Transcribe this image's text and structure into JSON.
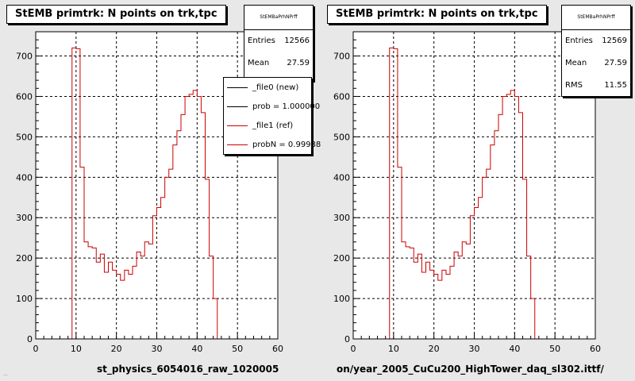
{
  "left_pad": {
    "title": "StEMB primtrk: N points on trk,tpc",
    "stats": {
      "name": "StEMBaPrhNPrff",
      "rows": [
        {
          "label": "Entries",
          "value": "12566"
        },
        {
          "label": "Mean",
          "value": "27.59"
        }
      ]
    },
    "legend": [
      {
        "label": "_file0 (new)",
        "color": "#000000"
      },
      {
        "label": "prob = 1.000000",
        "color": "#000000"
      },
      {
        "label": "_file1 (ref)",
        "color": "#cc0000"
      },
      {
        "label": "probN = 0.99988",
        "color": "#cc0000"
      }
    ],
    "file_label": "st_physics_6054016_raw_1020005"
  },
  "right_pad": {
    "title": "StEMB primtrk: N points on trk,tpc",
    "stats": {
      "name": "StEMBaPrhNPrff",
      "rows": [
        {
          "label": "Entries",
          "value": "12569"
        },
        {
          "label": "Mean",
          "value": "27.59"
        },
        {
          "label": "RMS",
          "value": "11.55"
        }
      ]
    },
    "file_label": "on/year_2005_CuCu200_HighTower_daq_sl302.ittf/"
  },
  "footer_text": "...",
  "colors": {
    "hist": "#cc0000",
    "grid": "#000000",
    "frame_bg": "#ffffff",
    "canvas_bg": "#e8e8e8"
  },
  "chart_data": [
    {
      "type": "bar",
      "title": "StEMB primtrk: N points on trk,tpc",
      "xlim": [
        0,
        60
      ],
      "ylim": [
        0,
        760
      ],
      "xticks": [
        0,
        10,
        20,
        30,
        40,
        50,
        60
      ],
      "yticks": [
        0,
        100,
        200,
        300,
        400,
        500,
        600,
        700
      ],
      "grid": true,
      "bin_edges": [
        0,
        1,
        2,
        3,
        4,
        5,
        6,
        7,
        8,
        9,
        10,
        11,
        12,
        13,
        14,
        15,
        16,
        17,
        18,
        19,
        20,
        21,
        22,
        23,
        24,
        25,
        26,
        27,
        28,
        29,
        30,
        31,
        32,
        33,
        34,
        35,
        36,
        37,
        38,
        39,
        40,
        41,
        42,
        43,
        44,
        45,
        46,
        47,
        48,
        49,
        50,
        51,
        52,
        53,
        54,
        55,
        56,
        57,
        58,
        59,
        60
      ],
      "series": [
        {
          "name": "_file1 (ref)",
          "values": [
            0,
            0,
            0,
            0,
            0,
            0,
            0,
            0,
            0,
            720,
            718,
            425,
            240,
            228,
            225,
            190,
            210,
            165,
            190,
            170,
            160,
            145,
            170,
            160,
            180,
            215,
            205,
            240,
            235,
            305,
            325,
            350,
            400,
            420,
            480,
            515,
            555,
            600,
            605,
            615,
            600,
            560,
            395,
            205,
            100,
            0,
            0,
            0,
            0,
            0,
            0,
            0,
            0,
            0,
            0,
            0,
            0,
            0,
            0,
            0
          ]
        }
      ]
    },
    {
      "type": "bar",
      "title": "StEMB primtrk: N points on trk,tpc",
      "xlim": [
        0,
        60
      ],
      "ylim": [
        0,
        760
      ],
      "xticks": [
        0,
        10,
        20,
        30,
        40,
        50,
        60
      ],
      "yticks": [
        0,
        100,
        200,
        300,
        400,
        500,
        600,
        700
      ],
      "grid": true,
      "bin_edges": [
        0,
        1,
        2,
        3,
        4,
        5,
        6,
        7,
        8,
        9,
        10,
        11,
        12,
        13,
        14,
        15,
        16,
        17,
        18,
        19,
        20,
        21,
        22,
        23,
        24,
        25,
        26,
        27,
        28,
        29,
        30,
        31,
        32,
        33,
        34,
        35,
        36,
        37,
        38,
        39,
        40,
        41,
        42,
        43,
        44,
        45,
        46,
        47,
        48,
        49,
        50,
        51,
        52,
        53,
        54,
        55,
        56,
        57,
        58,
        59,
        60
      ],
      "series": [
        {
          "values": [
            0,
            0,
            0,
            0,
            0,
            0,
            0,
            0,
            0,
            720,
            718,
            425,
            240,
            228,
            225,
            190,
            210,
            165,
            190,
            170,
            160,
            145,
            170,
            160,
            180,
            215,
            205,
            240,
            235,
            305,
            325,
            350,
            400,
            420,
            480,
            515,
            555,
            600,
            605,
            615,
            600,
            560,
            395,
            205,
            100,
            0,
            0,
            0,
            0,
            0,
            0,
            0,
            0,
            0,
            0,
            0,
            0,
            0,
            0,
            0
          ]
        }
      ]
    }
  ]
}
